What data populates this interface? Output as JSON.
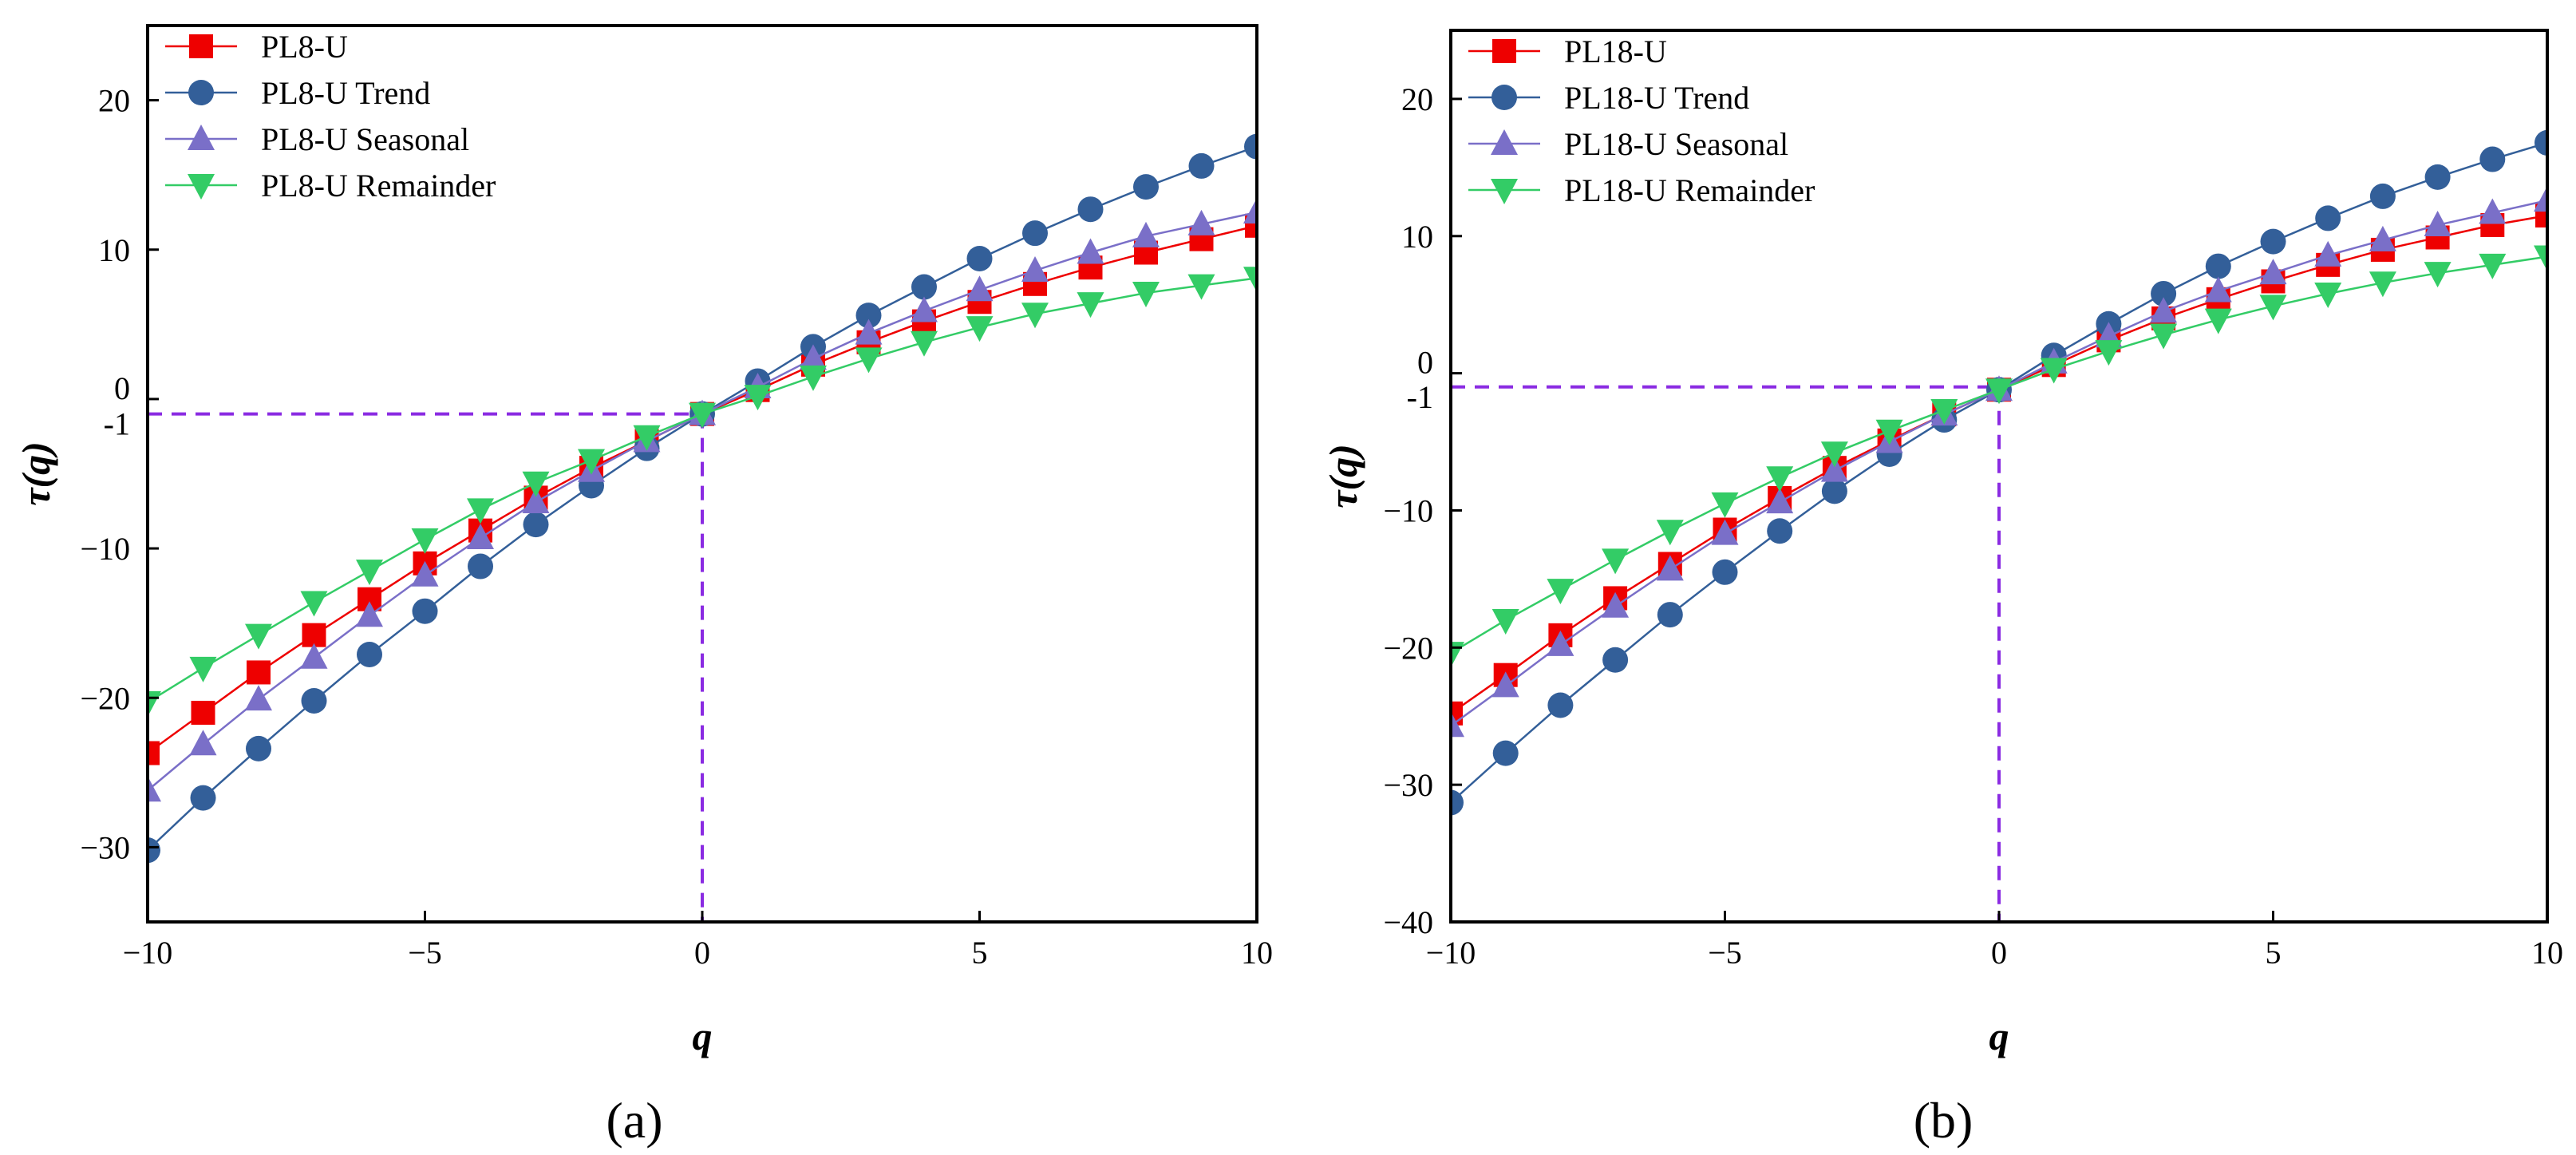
{
  "colors": {
    "PL-U": "#ee0000",
    "Trend": "#335f99",
    "Seasonal": "#7a6fc8",
    "Remainder": "#33cc66",
    "reference": "#8a2be2",
    "frame": "#000000"
  },
  "chart_data": [
    {
      "type": "line",
      "panel_label": "(a)",
      "xlabel": "q",
      "ylabel": "τ(q)",
      "xlim": [
        -10,
        10
      ],
      "ylim": [
        -35,
        25
      ],
      "xticks": [
        "−10",
        "−5",
        "0",
        "5",
        "10"
      ],
      "yticks": [
        {
          "value": -30,
          "label": "−30"
        },
        {
          "value": -20,
          "label": "−20"
        },
        {
          "value": -10,
          "label": "−10"
        },
        {
          "value": -1,
          "label": "-1"
        },
        {
          "value": 0,
          "label": "0"
        },
        {
          "value": 10,
          "label": "10"
        },
        {
          "value": 20,
          "label": "20"
        }
      ],
      "reference_point": {
        "x": 0,
        "y": -1
      },
      "x": [
        -10,
        -9,
        -8,
        -7,
        -6,
        -5,
        -4,
        -3,
        -2,
        -1,
        0,
        1,
        2,
        3,
        4,
        5,
        6,
        7,
        8,
        9,
        10
      ],
      "series": [
        {
          "name": "PL8-U",
          "key": "PL-U",
          "marker": "square",
          "values": [
            -23.7,
            -21.0,
            -18.3,
            -15.8,
            -13.4,
            -11.0,
            -8.8,
            -6.6,
            -4.6,
            -2.8,
            -1.0,
            0.6,
            2.3,
            3.8,
            5.2,
            6.5,
            7.7,
            8.8,
            9.8,
            10.7,
            11.6
          ]
        },
        {
          "name": "PL8-U Trend",
          "key": "Trend",
          "marker": "circle",
          "values": [
            -30.2,
            -26.7,
            -23.4,
            -20.2,
            -17.1,
            -14.2,
            -11.2,
            -8.4,
            -5.8,
            -3.3,
            -1.0,
            1.2,
            3.5,
            5.6,
            7.5,
            9.4,
            11.1,
            12.7,
            14.2,
            15.6,
            16.9
          ]
        },
        {
          "name": "PL8-U Seasonal",
          "key": "Seasonal",
          "marker": "triangle-up",
          "values": [
            -26.2,
            -23.1,
            -20.1,
            -17.3,
            -14.5,
            -11.8,
            -9.3,
            -6.9,
            -4.8,
            -2.8,
            -1.0,
            0.8,
            2.7,
            4.4,
            5.9,
            7.3,
            8.6,
            9.8,
            10.9,
            11.7,
            12.5
          ]
        },
        {
          "name": "PL8-U Remainder",
          "key": "Remainder",
          "marker": "triangle-down",
          "values": [
            -20.3,
            -18.0,
            -15.8,
            -13.6,
            -11.5,
            -9.4,
            -7.4,
            -5.6,
            -4.1,
            -2.5,
            -1.0,
            0.2,
            1.5,
            2.7,
            3.8,
            4.8,
            5.7,
            6.4,
            7.1,
            7.6,
            8.1
          ]
        }
      ]
    },
    {
      "type": "line",
      "panel_label": "(b)",
      "xlabel": "q",
      "ylabel": "τ(q)",
      "xlim": [
        -10,
        10
      ],
      "ylim": [
        -40,
        25
      ],
      "xticks": [
        "−10",
        "−5",
        "0",
        "5",
        "10"
      ],
      "yticks": [
        {
          "value": -40,
          "label": "−40"
        },
        {
          "value": -30,
          "label": "−30"
        },
        {
          "value": -20,
          "label": "−20"
        },
        {
          "value": -10,
          "label": "−10"
        },
        {
          "value": -1,
          "label": "-1"
        },
        {
          "value": 0,
          "label": "0"
        },
        {
          "value": 10,
          "label": "10"
        },
        {
          "value": 20,
          "label": "20"
        }
      ],
      "reference_point": {
        "x": 0,
        "y": -1
      },
      "x": [
        -10,
        -9,
        -8,
        -7,
        -6,
        -5,
        -4,
        -3,
        -2,
        -1,
        0,
        1,
        2,
        3,
        4,
        5,
        6,
        7,
        8,
        9,
        10
      ],
      "series": [
        {
          "name": "PL18-U",
          "key": "PL-U",
          "marker": "square",
          "values": [
            -24.8,
            -22.0,
            -19.1,
            -16.4,
            -13.9,
            -11.4,
            -9.1,
            -6.9,
            -4.9,
            -3.0,
            -1.2,
            0.6,
            2.4,
            4.0,
            5.4,
            6.7,
            7.9,
            9.0,
            9.9,
            10.8,
            11.5
          ]
        },
        {
          "name": "PL18-U Trend",
          "key": "Trend",
          "marker": "circle",
          "values": [
            -31.3,
            -27.7,
            -24.2,
            -20.9,
            -17.6,
            -14.5,
            -11.5,
            -8.6,
            -5.9,
            -3.4,
            -1.2,
            1.3,
            3.6,
            5.8,
            7.8,
            9.6,
            11.3,
            12.9,
            14.3,
            15.6,
            16.8
          ]
        },
        {
          "name": "PL18-U Seasonal",
          "key": "Seasonal",
          "marker": "triangle-up",
          "values": [
            -25.7,
            -22.8,
            -19.8,
            -17.0,
            -14.3,
            -11.7,
            -9.4,
            -7.1,
            -5.0,
            -3.0,
            -1.2,
            0.8,
            2.7,
            4.5,
            6.0,
            7.3,
            8.6,
            9.7,
            10.8,
            11.7,
            12.6
          ]
        },
        {
          "name": "PL18-U Remainder",
          "key": "Remainder",
          "marker": "triangle-down",
          "values": [
            -20.4,
            -18.0,
            -15.8,
            -13.6,
            -11.5,
            -9.5,
            -7.6,
            -5.8,
            -4.2,
            -2.7,
            -1.2,
            0.3,
            1.6,
            2.8,
            3.9,
            4.9,
            5.8,
            6.6,
            7.3,
            7.9,
            8.5
          ]
        }
      ]
    }
  ]
}
